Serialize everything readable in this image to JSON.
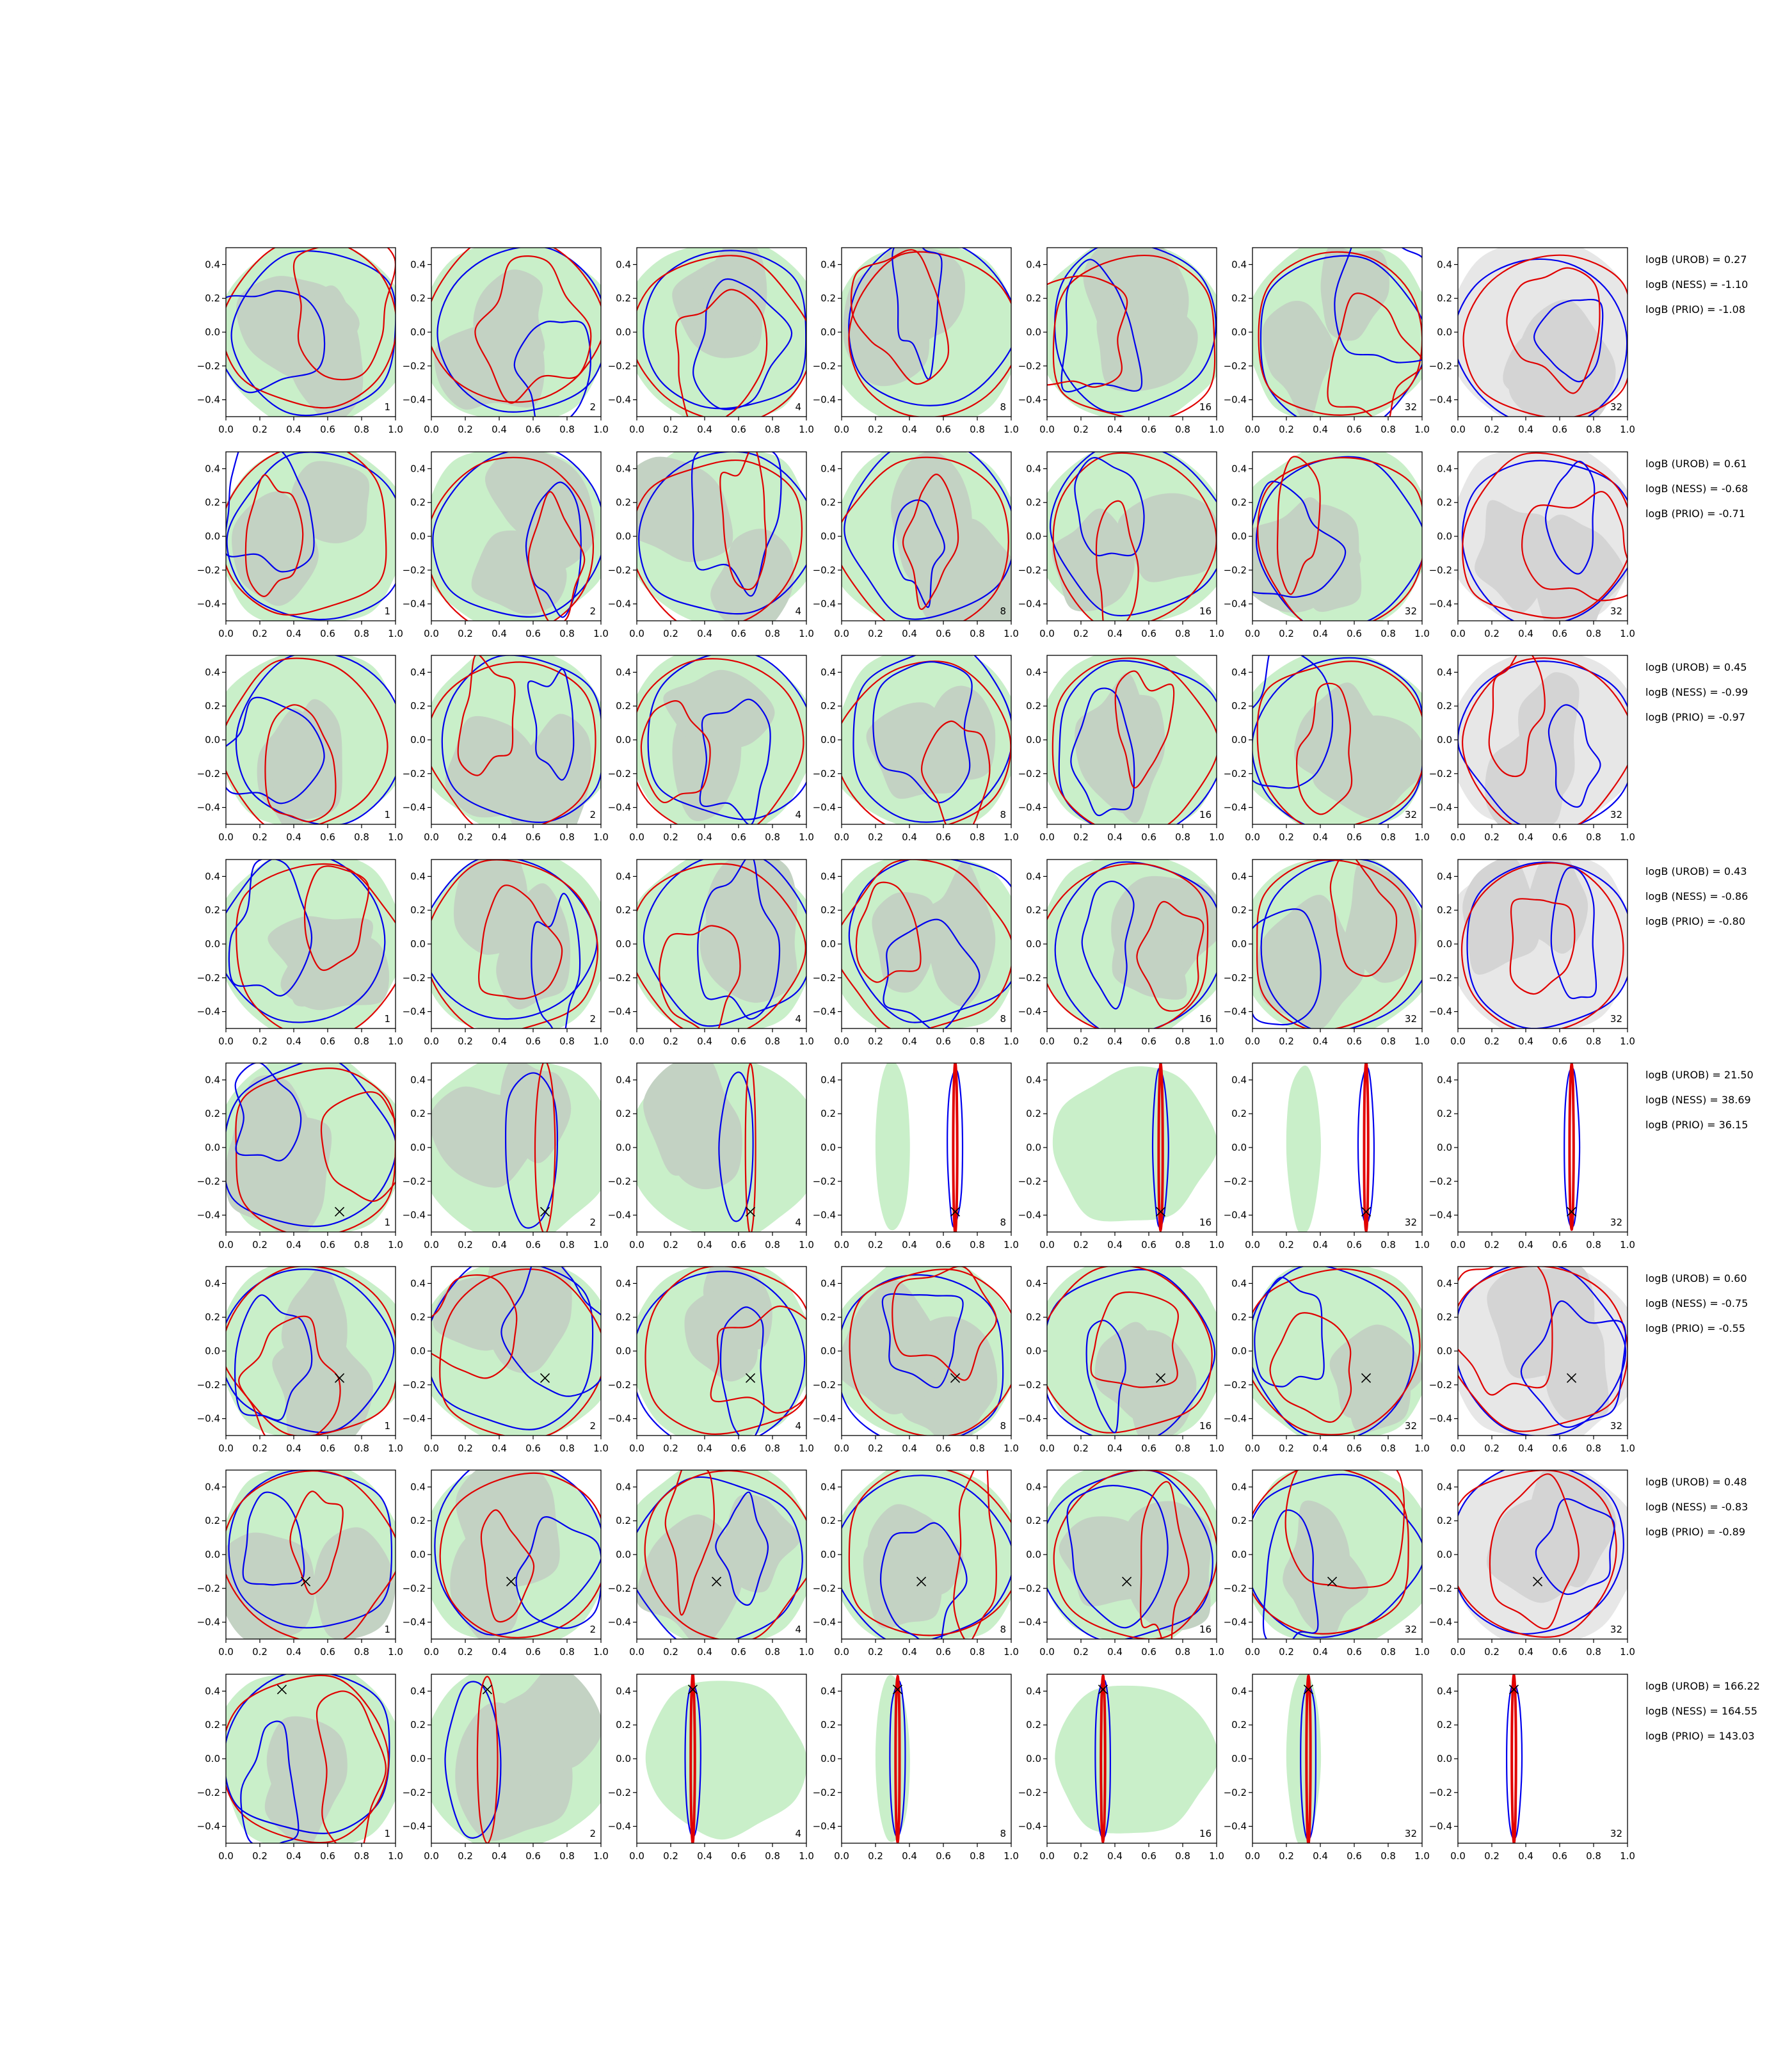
{
  "chart_data": {
    "type": "contour_grid",
    "rows": 8,
    "columns": 7,
    "xlim": [
      0.0,
      1.0
    ],
    "ylim": [
      -0.5,
      0.5
    ],
    "x_ticks": [
      "0.0",
      "0.2",
      "0.4",
      "0.6",
      "0.8",
      "1.0"
    ],
    "y_ticks": [
      "0.4",
      "0.2",
      "0.0",
      "−0.2",
      "−0.4"
    ],
    "panel_labels": [
      "1",
      "2",
      "4",
      "8",
      "16",
      "32",
      "32"
    ],
    "colors": {
      "fill_outer": "#c9efc9",
      "fill_inner": "#c3d2c3",
      "fill_outer_last": "#e7e7e7",
      "fill_inner_last": "#d4d4d4",
      "contour_a": "#0000ee",
      "contour_b": "#e00000",
      "marker": "#000000"
    },
    "row_stats": [
      [
        "logB (UROB) = 0.27",
        "logB (NESS) = -1.10",
        "logB (PRIO) = -1.08"
      ],
      [
        "logB (UROB) = 0.61",
        "logB (NESS) = -0.68",
        "logB (PRIO) = -0.71"
      ],
      [
        "logB (UROB) = 0.45",
        "logB (NESS) = -0.99",
        "logB (PRIO) = -0.97"
      ],
      [
        "logB (UROB) = 0.43",
        "logB (NESS) = -0.86",
        "logB (PRIO) = -0.80"
      ],
      [
        "logB (UROB) = 21.50",
        "logB (NESS) = 38.69",
        "logB (PRIO) = 36.15"
      ],
      [
        "logB (UROB) = 0.60",
        "logB (NESS) = -0.75",
        "logB (PRIO) = -0.55"
      ],
      [
        "logB (UROB) = 0.48",
        "logB (NESS) = -0.83",
        "logB (PRIO) = -0.89"
      ],
      [
        "logB (UROB) = 166.22",
        "logB (NESS) = 164.55",
        "logB (PRIO) = 143.03"
      ]
    ],
    "true_points": [
      null,
      null,
      null,
      null,
      [
        0.67,
        -0.38
      ],
      [
        0.67,
        -0.16
      ],
      [
        0.47,
        -0.16
      ],
      [
        0.33,
        0.41
      ]
    ],
    "concentration": [
      0,
      0,
      0,
      0,
      [
        0,
        1,
        2,
        3,
        3,
        3,
        3
      ],
      0,
      0,
      [
        0,
        1,
        3,
        3,
        3,
        3,
        3
      ]
    ]
  }
}
